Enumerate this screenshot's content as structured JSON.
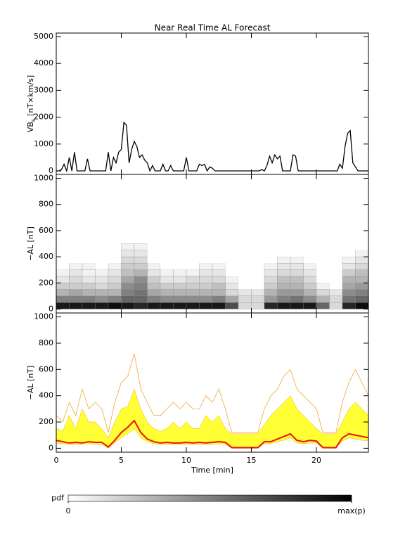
{
  "chart_data": [
    {
      "type": "line",
      "title": "Near Real Time AL Forecast",
      "ylabel": {
        "text": "VB",
        "sub": "s",
        "unit": "[nT×km/s]"
      },
      "xlim": [
        0,
        24
      ],
      "ylim": [
        -130,
        5130
      ],
      "yticks": [
        0,
        1000,
        2000,
        3000,
        4000,
        5000
      ],
      "x": [
        0,
        0.2,
        0.4,
        0.6,
        0.8,
        1,
        1.2,
        1.4,
        1.6,
        1.8,
        2,
        2.2,
        2.4,
        2.6,
        2.8,
        3,
        3.2,
        3.4,
        3.6,
        3.8,
        4,
        4.2,
        4.4,
        4.6,
        4.8,
        5,
        5.2,
        5.4,
        5.6,
        5.8,
        6,
        6.2,
        6.4,
        6.6,
        6.8,
        7,
        7.2,
        7.4,
        7.6,
        7.8,
        8,
        8.2,
        8.4,
        8.6,
        8.8,
        9,
        9.2,
        9.4,
        9.6,
        9.8,
        10,
        10.2,
        10.4,
        10.6,
        10.8,
        11,
        11.2,
        11.4,
        11.6,
        11.8,
        12,
        12.2,
        12.4,
        12.6,
        12.8,
        13,
        13.2,
        13.4,
        13.6,
        13.8,
        14,
        14.2,
        14.4,
        14.6,
        14.8,
        15,
        15.2,
        15.4,
        15.6,
        15.8,
        16,
        16.2,
        16.4,
        16.6,
        16.8,
        17,
        17.2,
        17.4,
        17.6,
        17.8,
        18,
        18.2,
        18.4,
        18.6,
        18.8,
        19,
        19.2,
        19.4,
        19.6,
        19.8,
        20,
        20.2,
        20.4,
        20.6,
        20.8,
        21,
        21.2,
        21.4,
        21.6,
        21.8,
        22,
        22.2,
        22.4,
        22.6,
        22.8,
        23,
        23.2,
        23.4,
        23.6,
        23.8,
        24
      ],
      "color": "#000000",
      "values": [
        0,
        0,
        50,
        250,
        0,
        500,
        0,
        700,
        0,
        0,
        0,
        0,
        450,
        0,
        0,
        0,
        0,
        0,
        0,
        0,
        700,
        0,
        500,
        300,
        700,
        800,
        1800,
        1700,
        300,
        800,
        1100,
        900,
        500,
        600,
        400,
        300,
        0,
        200,
        0,
        0,
        0,
        250,
        0,
        0,
        200,
        0,
        0,
        0,
        0,
        0,
        500,
        0,
        0,
        0,
        0,
        250,
        200,
        250,
        0,
        150,
        100,
        0,
        0,
        0,
        0,
        0,
        0,
        0,
        0,
        0,
        0,
        0,
        0,
        0,
        0,
        0,
        0,
        0,
        0,
        50,
        0,
        200,
        550,
        300,
        600,
        450,
        550,
        0,
        0,
        0,
        0,
        600,
        550,
        0,
        0,
        0,
        0,
        0,
        0,
        0,
        0,
        0,
        0,
        0,
        0,
        0,
        0,
        0,
        0,
        250,
        100,
        900,
        1400,
        1500,
        300,
        150,
        0,
        0,
        0,
        0,
        0
      ]
    },
    {
      "type": "heatmap",
      "ylabel": "−AL [nT]",
      "xlim": [
        0,
        24
      ],
      "ylim": [
        -30,
        1030
      ],
      "yticks": [
        0,
        200,
        400,
        600,
        800,
        1000
      ],
      "xbins": [
        0,
        1,
        2,
        3,
        4,
        5,
        6,
        7,
        8,
        9,
        10,
        11,
        12,
        13,
        14,
        15,
        16,
        17,
        18,
        19,
        20,
        21,
        22,
        23,
        24
      ],
      "ybins": [
        0,
        50,
        100,
        150,
        200,
        250,
        300,
        350,
        400,
        450,
        500
      ],
      "values": [
        [
          0.9,
          0.5,
          0.3,
          0.2,
          0.1,
          0.05,
          0,
          0,
          0,
          0
        ],
        [
          0.9,
          0.5,
          0.35,
          0.2,
          0.15,
          0.1,
          0.05,
          0,
          0,
          0
        ],
        [
          0.9,
          0.5,
          0.3,
          0.2,
          0.1,
          0.05,
          0.05,
          0,
          0,
          0
        ],
        [
          0.9,
          0.45,
          0.3,
          0.15,
          0.1,
          0.05,
          0,
          0,
          0,
          0
        ],
        [
          0.95,
          0.5,
          0.3,
          0.2,
          0.15,
          0.1,
          0.05,
          0,
          0,
          0
        ],
        [
          0.9,
          0.6,
          0.5,
          0.45,
          0.35,
          0.25,
          0.2,
          0.15,
          0.1,
          0.05
        ],
        [
          0.85,
          0.6,
          0.55,
          0.5,
          0.45,
          0.3,
          0.2,
          0.15,
          0.1,
          0.05
        ],
        [
          0.9,
          0.5,
          0.35,
          0.25,
          0.2,
          0.1,
          0.05,
          0,
          0,
          0
        ],
        [
          0.9,
          0.45,
          0.3,
          0.2,
          0.1,
          0.05,
          0,
          0,
          0,
          0
        ],
        [
          0.9,
          0.45,
          0.3,
          0.2,
          0.1,
          0.05,
          0,
          0,
          0,
          0
        ],
        [
          0.9,
          0.45,
          0.3,
          0.2,
          0.15,
          0.05,
          0,
          0,
          0,
          0
        ],
        [
          0.9,
          0.45,
          0.3,
          0.2,
          0.15,
          0.1,
          0.05,
          0,
          0,
          0
        ],
        [
          0.9,
          0.5,
          0.3,
          0.25,
          0.15,
          0.1,
          0.05,
          0,
          0,
          0
        ],
        [
          0.7,
          0.35,
          0.15,
          0.1,
          0.05,
          0,
          0,
          0,
          0,
          0
        ],
        [
          0.15,
          0.15,
          0.1,
          0,
          0,
          0,
          0,
          0,
          0,
          0
        ],
        [
          0.15,
          0.15,
          0.1,
          0,
          0,
          0,
          0,
          0,
          0,
          0
        ],
        [
          0.85,
          0.4,
          0.3,
          0.2,
          0.15,
          0.1,
          0.05,
          0,
          0,
          0
        ],
        [
          0.9,
          0.5,
          0.4,
          0.3,
          0.25,
          0.15,
          0.1,
          0.05,
          0,
          0
        ],
        [
          0.9,
          0.55,
          0.4,
          0.3,
          0.25,
          0.15,
          0.1,
          0.05,
          0,
          0
        ],
        [
          0.9,
          0.45,
          0.3,
          0.2,
          0.15,
          0.1,
          0.05,
          0,
          0,
          0
        ],
        [
          0.6,
          0.3,
          0.15,
          0.05,
          0,
          0,
          0,
          0,
          0,
          0
        ],
        [
          0.15,
          0.15,
          0.1,
          0,
          0,
          0,
          0,
          0,
          0,
          0
        ],
        [
          0.85,
          0.55,
          0.45,
          0.35,
          0.3,
          0.2,
          0.1,
          0.05,
          0,
          0
        ],
        [
          0.95,
          0.6,
          0.5,
          0.4,
          0.3,
          0.25,
          0.15,
          0.1,
          0.05,
          0
        ]
      ]
    },
    {
      "type": "band",
      "ylabel": "−AL [nT]",
      "xlabel": "Time [min]",
      "xlim": [
        0,
        24
      ],
      "ylim": [
        -30,
        1030
      ],
      "yticks": [
        0,
        200,
        400,
        600,
        800,
        1000
      ],
      "xticks": [
        0,
        5,
        10,
        15,
        20
      ],
      "x": [
        0,
        0.5,
        1,
        1.5,
        2,
        2.5,
        3,
        3.5,
        4,
        4.5,
        5,
        5.5,
        6,
        6.5,
        7,
        7.5,
        8,
        8.5,
        9,
        9.5,
        10,
        10.5,
        11,
        11.5,
        12,
        12.5,
        13,
        13.5,
        14,
        14.5,
        15,
        15.5,
        16,
        16.5,
        17,
        17.5,
        18,
        18.5,
        19,
        19.5,
        20,
        20.5,
        21,
        21.5,
        22,
        22.5,
        23,
        23.5,
        24
      ],
      "outer": {
        "color": "#f0a830",
        "values": [
          250,
          200,
          350,
          250,
          450,
          300,
          350,
          300,
          120,
          350,
          500,
          550,
          720,
          450,
          350,
          250,
          250,
          300,
          350,
          300,
          350,
          300,
          300,
          400,
          350,
          450,
          300,
          120,
          120,
          120,
          120,
          120,
          300,
          400,
          450,
          550,
          600,
          450,
          400,
          350,
          300,
          120,
          120,
          120,
          350,
          500,
          600,
          500,
          400
        ]
      },
      "band": {
        "color": "#ffff33",
        "upper": [
          150,
          130,
          250,
          150,
          300,
          200,
          200,
          150,
          80,
          200,
          300,
          320,
          450,
          300,
          200,
          150,
          130,
          150,
          200,
          150,
          200,
          150,
          150,
          250,
          200,
          250,
          150,
          110,
          110,
          110,
          110,
          110,
          180,
          250,
          300,
          350,
          400,
          300,
          250,
          200,
          150,
          110,
          110,
          110,
          200,
          300,
          350,
          300,
          250
        ],
        "lower": [
          40,
          35,
          30,
          30,
          30,
          35,
          30,
          30,
          0,
          40,
          80,
          110,
          150,
          80,
          50,
          35,
          30,
          30,
          30,
          30,
          30,
          30,
          30,
          30,
          30,
          35,
          30,
          0,
          0,
          0,
          0,
          0,
          35,
          35,
          50,
          60,
          80,
          40,
          35,
          40,
          40,
          0,
          0,
          0,
          55,
          80,
          70,
          60,
          60
        ]
      },
      "median": {
        "color": "#ee1111",
        "values": [
          60,
          50,
          40,
          45,
          40,
          50,
          45,
          45,
          10,
          60,
          120,
          160,
          210,
          120,
          70,
          50,
          40,
          45,
          40,
          40,
          45,
          40,
          45,
          40,
          45,
          50,
          45,
          5,
          5,
          5,
          5,
          5,
          50,
          50,
          70,
          90,
          110,
          60,
          50,
          60,
          55,
          5,
          5,
          5,
          80,
          110,
          100,
          90,
          80
        ]
      }
    }
  ],
  "colorbar": {
    "label": "pdf",
    "colors": [
      "#ffffff",
      "#000000"
    ],
    "ticks": [
      0,
      {
        "value": 1,
        "label": "max(p)"
      }
    ]
  }
}
